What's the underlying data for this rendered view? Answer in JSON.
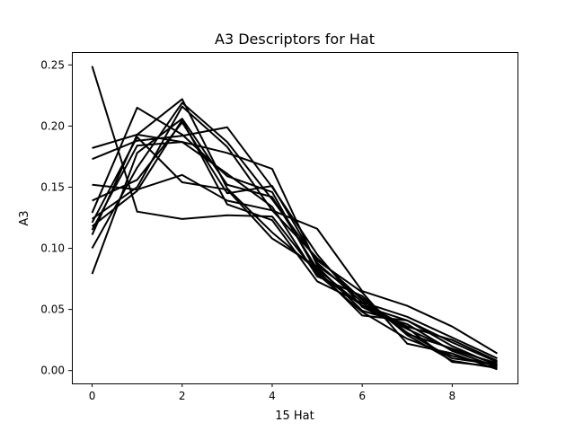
{
  "chart_data": {
    "type": "line",
    "title": "A3 Descriptors for Hat",
    "xlabel": "15 Hat",
    "ylabel": "A3",
    "xlim": [
      -0.45,
      9.45
    ],
    "ylim": [
      -0.0105,
      0.2605
    ],
    "x_ticks": [
      0,
      2,
      4,
      6,
      8
    ],
    "x_tick_labels": [
      "0",
      "2",
      "4",
      "6",
      "8"
    ],
    "y_ticks": [
      0.0,
      0.05,
      0.1,
      0.15,
      0.2,
      0.25
    ],
    "y_tick_labels": [
      "0.00",
      "0.05",
      "0.10",
      "0.15",
      "0.20",
      "0.25"
    ],
    "grid": false,
    "line_color": "#000000",
    "x": [
      0,
      1,
      2,
      3,
      4,
      5,
      6,
      7,
      8,
      9
    ],
    "series": [
      {
        "values": [
          0.249,
          0.13,
          0.124,
          0.127,
          0.126,
          0.079,
          0.048,
          0.026,
          0.012,
          0.004
        ]
      },
      {
        "values": [
          0.182,
          0.193,
          0.187,
          0.178,
          0.165,
          0.086,
          0.059,
          0.031,
          0.01,
          0.005
        ]
      },
      {
        "values": [
          0.173,
          0.188,
          0.192,
          0.199,
          0.15,
          0.095,
          0.052,
          0.034,
          0.017,
          0.006
        ]
      },
      {
        "values": [
          0.152,
          0.148,
          0.16,
          0.139,
          0.131,
          0.116,
          0.065,
          0.053,
          0.036,
          0.014
        ]
      },
      {
        "values": [
          0.139,
          0.156,
          0.203,
          0.145,
          0.151,
          0.088,
          0.056,
          0.044,
          0.027,
          0.01
        ]
      },
      {
        "values": [
          0.129,
          0.215,
          0.193,
          0.159,
          0.146,
          0.08,
          0.053,
          0.041,
          0.02,
          0.004
        ]
      },
      {
        "values": [
          0.124,
          0.15,
          0.216,
          0.183,
          0.131,
          0.092,
          0.058,
          0.03,
          0.018,
          0.005
        ]
      },
      {
        "values": [
          0.121,
          0.191,
          0.154,
          0.148,
          0.108,
          0.085,
          0.049,
          0.038,
          0.016,
          0.003
        ]
      },
      {
        "values": [
          0.118,
          0.147,
          0.205,
          0.136,
          0.123,
          0.073,
          0.055,
          0.036,
          0.025,
          0.008
        ]
      },
      {
        "values": [
          0.115,
          0.184,
          0.187,
          0.161,
          0.134,
          0.077,
          0.061,
          0.029,
          0.008,
          0.002
        ]
      },
      {
        "values": [
          0.111,
          0.193,
          0.222,
          0.149,
          0.113,
          0.082,
          0.045,
          0.041,
          0.023,
          0.007
        ]
      },
      {
        "values": [
          0.1,
          0.166,
          0.219,
          0.187,
          0.14,
          0.09,
          0.064,
          0.022,
          0.014,
          0.001
        ]
      },
      {
        "values": [
          0.079,
          0.178,
          0.206,
          0.152,
          0.142,
          0.083,
          0.053,
          0.035,
          0.007,
          0.003
        ]
      }
    ]
  }
}
